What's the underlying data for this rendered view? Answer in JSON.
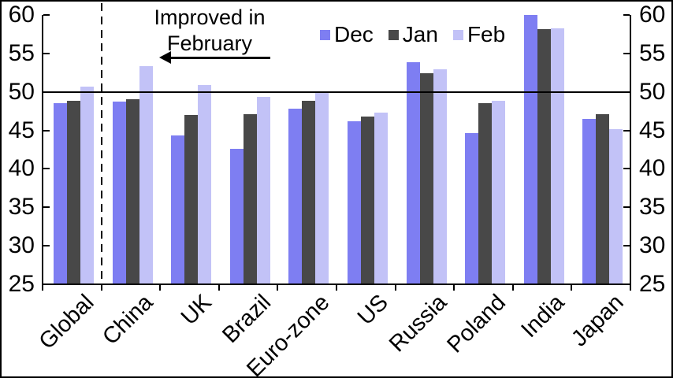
{
  "chart_data": {
    "type": "bar",
    "title": "",
    "xlabel": "",
    "ylabel": "",
    "categories": [
      "Global",
      "China",
      "UK",
      "Brazil",
      "Euro-zone",
      "US",
      "Russia",
      "Poland",
      "India",
      "Japan"
    ],
    "series": [
      {
        "name": "Dec",
        "color": "#7e7ef2",
        "values": [
          48.5,
          48.7,
          44.3,
          42.6,
          47.8,
          46.2,
          53.9,
          44.6,
          60.0,
          46.5
        ]
      },
      {
        "name": "Jan",
        "color": "#484848",
        "values": [
          48.8,
          49.0,
          47.0,
          47.1,
          48.8,
          46.8,
          52.4,
          48.5,
          58.2,
          47.1
        ]
      },
      {
        "name": "Feb",
        "color": "#c2c2f7",
        "values": [
          50.7,
          53.3,
          50.9,
          49.4,
          49.9,
          47.3,
          52.9,
          48.8,
          58.3,
          45.2
        ]
      }
    ],
    "ylim": [
      25,
      60
    ],
    "yticks": [
      25,
      30,
      35,
      40,
      45,
      50,
      55,
      60
    ],
    "y_axis_sides": [
      "left",
      "right"
    ],
    "reference_line": 50,
    "separator_after_category": "Global",
    "grid": false,
    "legend_position": "top-center",
    "annotation": {
      "text": "Improved in\nFebruary",
      "arrow_direction": "left"
    },
    "axis_color": "#000000",
    "background_color": "#ffffff"
  }
}
